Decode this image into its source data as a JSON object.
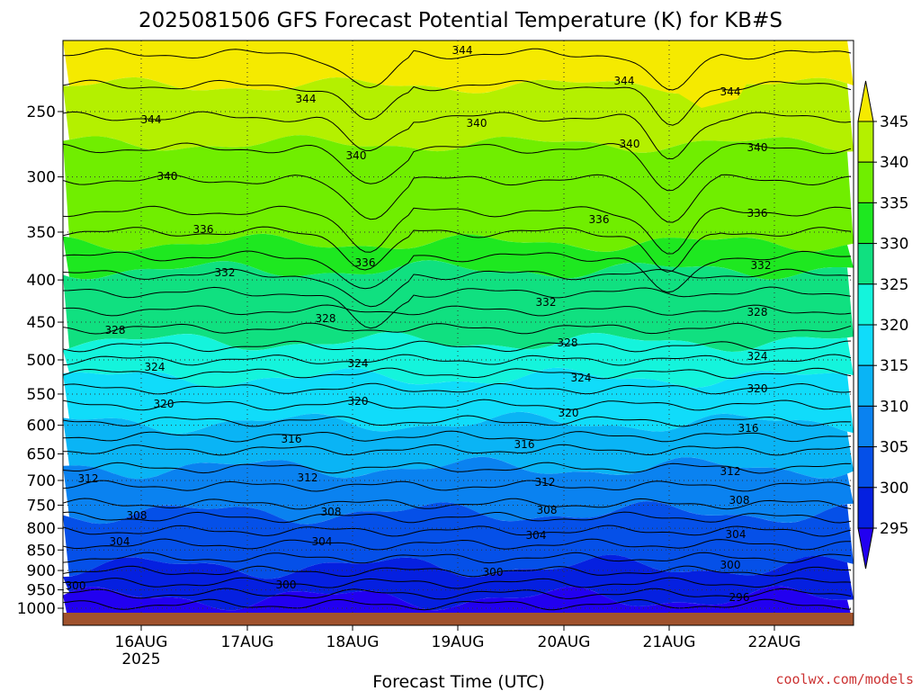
{
  "chart_data": {
    "type": "heatmap",
    "title": "2025081506 GFS Forecast Potential Temperature (K) for KB#S",
    "xlabel": "Forecast Time (UTC)",
    "ylabel": "",
    "x_ticks": [
      "16AUG",
      "17AUG",
      "18AUG",
      "19AUG",
      "20AUG",
      "21AUG",
      "22AUG"
    ],
    "x_year_label": "2025",
    "y_ticks": [
      "250",
      "300",
      "350",
      "400",
      "450",
      "500",
      "550",
      "600",
      "650",
      "700",
      "750",
      "800",
      "850",
      "900",
      "950",
      "1000"
    ],
    "ylim": [
      200,
      1030
    ],
    "y_scale": "log",
    "colorbar": {
      "labels": [
        "345",
        "340",
        "335",
        "330",
        "325",
        "320",
        "315",
        "310",
        "305",
        "300",
        "295"
      ],
      "colors": [
        "#f5ea00",
        "#b4f000",
        "#70ee00",
        "#1ee820",
        "#10e080",
        "#14f4dc",
        "#10dcfa",
        "#0ab4f5",
        "#0a82f0",
        "#0550e8",
        "#0520e0",
        "#2200f0"
      ]
    },
    "contour_labels": [
      {
        "text": "344",
        "lev": 200
      },
      {
        "text": "344",
        "lev": 200
      },
      {
        "text": "344",
        "lev": 200
      },
      {
        "text": "344",
        "lev": 200
      },
      {
        "text": "344",
        "lev": 200
      },
      {
        "text": "340",
        "lev": 200
      },
      {
        "text": "340",
        "lev": 200
      },
      {
        "text": "340",
        "lev": 200
      },
      {
        "text": "340",
        "lev": 200
      },
      {
        "text": "340",
        "lev": 200
      },
      {
        "text": "336",
        "lev": 200
      },
      {
        "text": "336",
        "lev": 200
      },
      {
        "text": "336",
        "lev": 200
      },
      {
        "text": "336",
        "lev": 200
      },
      {
        "text": "332",
        "lev": 200
      },
      {
        "text": "332",
        "lev": 200
      },
      {
        "text": "332",
        "lev": 200
      },
      {
        "text": "328",
        "lev": 200
      },
      {
        "text": "328",
        "lev": 200
      },
      {
        "text": "328",
        "lev": 200
      },
      {
        "text": "328",
        "lev": 200
      },
      {
        "text": "324",
        "lev": 200
      },
      {
        "text": "324",
        "lev": 200
      },
      {
        "text": "324",
        "lev": 200
      },
      {
        "text": "324",
        "lev": 200
      },
      {
        "text": "320",
        "lev": 200
      },
      {
        "text": "320",
        "lev": 200
      },
      {
        "text": "320",
        "lev": 200
      },
      {
        "text": "320",
        "lev": 200
      },
      {
        "text": "316",
        "lev": 200
      },
      {
        "text": "316",
        "lev": 200
      },
      {
        "text": "316",
        "lev": 200
      },
      {
        "text": "312",
        "lev": 200
      },
      {
        "text": "312",
        "lev": 200
      },
      {
        "text": "312",
        "lev": 200
      },
      {
        "text": "312",
        "lev": 200
      },
      {
        "text": "308",
        "lev": 200
      },
      {
        "text": "308",
        "lev": 200
      },
      {
        "text": "308",
        "lev": 200
      },
      {
        "text": "308",
        "lev": 200
      },
      {
        "text": "304",
        "lev": 200
      },
      {
        "text": "304",
        "lev": 200
      },
      {
        "text": "304",
        "lev": 200
      },
      {
        "text": "304",
        "lev": 200
      },
      {
        "text": "300",
        "lev": 200
      },
      {
        "text": "300",
        "lev": 200
      },
      {
        "text": "300",
        "lev": 200
      },
      {
        "text": "300",
        "lev": 200
      },
      {
        "text": "296",
        "lev": 200
      }
    ]
  },
  "credit": "coolwx.com/models"
}
